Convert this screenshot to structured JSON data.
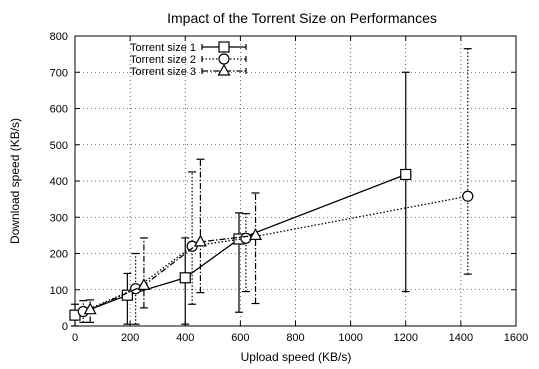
{
  "chart_data": {
    "type": "line",
    "title": "Impact of the Torrent Size on Performances",
    "xlabel": "Upload speed (KB/s)",
    "ylabel": "Download speed (KB/s)",
    "xlim": [
      0,
      1600
    ],
    "ylim": [
      0,
      800
    ],
    "xticks": [
      "0",
      "200",
      "400",
      "600",
      "800",
      "1000",
      "1200",
      "1400",
      "1600"
    ],
    "yticks": [
      "0",
      "100",
      "200",
      "300",
      "400",
      "500",
      "600",
      "700",
      "800"
    ],
    "grid": true,
    "legend_position": "top-left",
    "series": [
      {
        "name": "Torrent size 1",
        "marker": "square",
        "dash": "solid",
        "color": "#000000",
        "points": [
          {
            "x": 0,
            "y": 30,
            "ylo": 0,
            "yhi": 60,
            "xerr": 10
          },
          {
            "x": 190,
            "y": 85,
            "ylo": 5,
            "yhi": 145,
            "xerr": 15
          },
          {
            "x": 400,
            "y": 133,
            "ylo": 5,
            "yhi": 243,
            "xerr": 15
          },
          {
            "x": 595,
            "y": 240,
            "ylo": 38,
            "yhi": 312,
            "xerr": 15
          },
          {
            "x": 1200,
            "y": 418,
            "ylo": 95,
            "yhi": 700,
            "xerr": 20
          }
        ]
      },
      {
        "name": "Torrent size 2",
        "marker": "circle",
        "dash": "dotted",
        "color": "#000000",
        "points": [
          {
            "x": 30,
            "y": 40,
            "ylo": 10,
            "yhi": 70,
            "xerr": 10
          },
          {
            "x": 220,
            "y": 103,
            "ylo": 5,
            "yhi": 200,
            "xerr": 15
          },
          {
            "x": 425,
            "y": 220,
            "ylo": 60,
            "yhi": 425,
            "xerr": 15
          },
          {
            "x": 620,
            "y": 242,
            "ylo": 95,
            "yhi": 310,
            "xerr": 15
          },
          {
            "x": 1425,
            "y": 358,
            "ylo": 143,
            "yhi": 765,
            "xerr": 20
          }
        ]
      },
      {
        "name": "Torrent size 3",
        "marker": "triangle",
        "dash": "dashdot",
        "color": "#000000",
        "points": [
          {
            "x": 55,
            "y": 45,
            "ylo": 10,
            "yhi": 72,
            "xerr": 10
          },
          {
            "x": 250,
            "y": 112,
            "ylo": 50,
            "yhi": 243,
            "xerr": 15
          },
          {
            "x": 455,
            "y": 232,
            "ylo": 92,
            "yhi": 460,
            "xerr": 15
          },
          {
            "x": 655,
            "y": 250,
            "ylo": 62,
            "yhi": 367,
            "xerr": 15
          }
        ]
      }
    ]
  }
}
